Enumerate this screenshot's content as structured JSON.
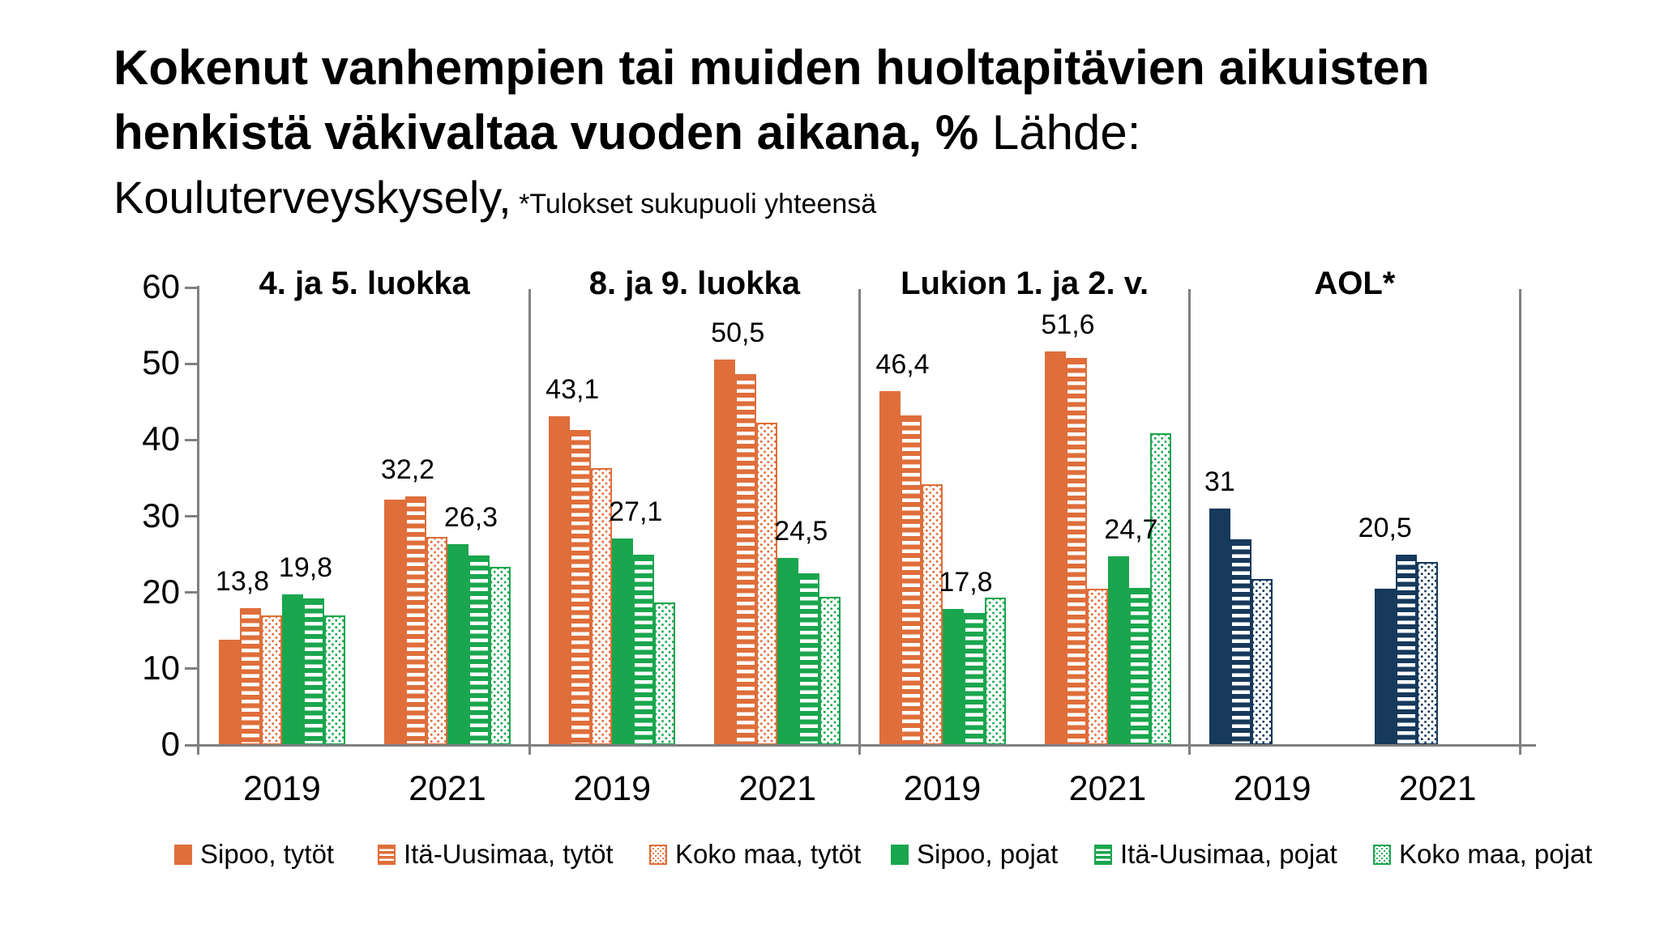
{
  "title": {
    "line1": "Kokenut vanhempien tai muiden huoltapitävien aikuisten",
    "line2_bold": "henkistä väkivaltaa vuoden aikana, %",
    "line2_regular": " Lähde:",
    "line3": "Kouluterveyskysely,",
    "note": " *Tulokset sukupuoli yhteensä"
  },
  "colors": {
    "girls": "#DF6E3A",
    "boys": "#1AA64E",
    "combined": "#16395C",
    "axis": "#808080",
    "text": "#000000"
  },
  "legend": [
    {
      "label": "Sipoo, tytöt",
      "pattern": "solid",
      "color": "girls"
    },
    {
      "label": "Itä-Uusimaa, tytöt",
      "pattern": "hstripes",
      "color": "girls"
    },
    {
      "label": "Koko maa, tytöt",
      "pattern": "dots",
      "color": "girls"
    },
    {
      "label": "Sipoo, pojat",
      "pattern": "solid",
      "color": "boys"
    },
    {
      "label": "Itä-Uusimaa, pojat",
      "pattern": "hstripes",
      "color": "boys"
    },
    {
      "label": "Koko maa, pojat",
      "pattern": "dots",
      "color": "boys"
    }
  ],
  "chart_data": {
    "type": "bar",
    "ylim": [
      0,
      60
    ],
    "yticks": [
      0,
      10,
      20,
      30,
      40,
      50,
      60
    ],
    "grid": false,
    "legend_position": "bottom",
    "series_patterns": [
      "solid",
      "hstripes",
      "dots"
    ],
    "panels": [
      {
        "title": "4. ja 5. luokka",
        "palette": "standard",
        "groups": [
          {
            "x": "2019",
            "values": [
              13.8,
              18.0,
              17.0,
              19.8,
              19.2,
              17.0
            ],
            "value_labels": [
              {
                "bar": 0,
                "text": "13,8"
              },
              {
                "bar": 3,
                "text": "19,8"
              }
            ]
          },
          {
            "x": "2021",
            "values": [
              32.2,
              32.6,
              27.3,
              26.3,
              24.9,
              23.4
            ],
            "value_labels": [
              {
                "bar": 0,
                "text": "32,2"
              },
              {
                "bar": 3,
                "text": "26,3"
              }
            ]
          }
        ]
      },
      {
        "title": "8. ja 9. luokka",
        "palette": "standard",
        "groups": [
          {
            "x": "2019",
            "values": [
              43.1,
              41.3,
              36.3,
              27.1,
              25.0,
              18.7
            ],
            "value_labels": [
              {
                "bar": 0,
                "text": "43,1"
              },
              {
                "bar": 3,
                "text": "27,1"
              }
            ]
          },
          {
            "x": "2021",
            "values": [
              50.5,
              48.6,
              42.3,
              24.5,
              22.5,
              19.4
            ],
            "value_labels": [
              {
                "bar": 0,
                "text": "50,5"
              },
              {
                "bar": 3,
                "text": "24,5"
              }
            ]
          }
        ]
      },
      {
        "title": "Lukion 1. ja 2. v.",
        "palette": "standard",
        "groups": [
          {
            "x": "2019",
            "values": [
              46.4,
              43.2,
              34.2,
              17.8,
              17.3,
              19.3
            ],
            "value_labels": [
              {
                "bar": 0,
                "text": "46,4"
              },
              {
                "bar": 3,
                "text": "17,8"
              }
            ]
          },
          {
            "x": "2021",
            "values": [
              51.6,
              50.8,
              20.5,
              24.7,
              20.6,
              40.9
            ],
            "value_labels": [
              {
                "bar": 0,
                "text": "51,6"
              },
              {
                "bar": 3,
                "text": "24,7"
              }
            ]
          }
        ]
      },
      {
        "title": "AOL*",
        "palette": "navy",
        "groups": [
          {
            "x": "2019",
            "values": [
              31,
              27.0,
              21.8
            ],
            "value_labels": [
              {
                "bar": 0,
                "text": "31"
              }
            ]
          },
          {
            "x": "2021",
            "values": [
              20.5,
              25.0,
              24.0
            ],
            "value_labels": [
              {
                "bar": 0,
                "text": "20,5"
              }
            ]
          }
        ]
      }
    ]
  }
}
